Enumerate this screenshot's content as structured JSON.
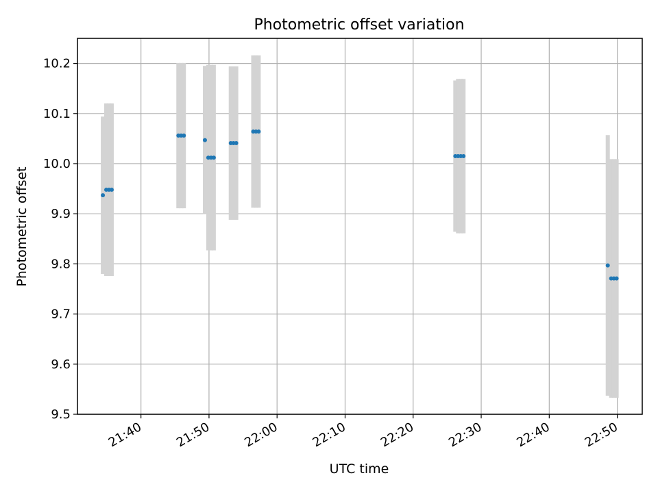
{
  "chart_data": {
    "type": "scatter",
    "title": "Photometric offset variation",
    "xlabel": "UTC time",
    "ylabel": "Photometric offset",
    "ylim": [
      9.5,
      10.25
    ],
    "xlim": [
      "21:30:40",
      "22:53:40"
    ],
    "grid": true,
    "x_ticks": [
      "21:40",
      "21:50",
      "22:00",
      "22:10",
      "22:20",
      "22:30",
      "22:40",
      "22:50"
    ],
    "y_ticks": [
      9.5,
      9.6,
      9.7,
      9.8,
      9.9,
      10.0,
      10.1,
      10.2
    ],
    "y_tick_labels": [
      "9.5",
      "9.6",
      "9.7",
      "9.8",
      "9.9",
      "10.0",
      "10.1",
      "10.2"
    ],
    "point_color": "#1f77b4",
    "errorbar_color": "#d3d3d3",
    "points": [
      {
        "x": "21:34:24",
        "y": 9.937,
        "err": 0.157
      },
      {
        "x": "21:34:54",
        "y": 9.948,
        "err": 0.172
      },
      {
        "x": "21:35:18",
        "y": 9.948,
        "err": 0.172
      },
      {
        "x": "21:35:42",
        "y": 9.948,
        "err": 0.172
      },
      {
        "x": "21:45:30",
        "y": 10.056,
        "err": 0.145
      },
      {
        "x": "21:45:54",
        "y": 10.056,
        "err": 0.145
      },
      {
        "x": "21:46:18",
        "y": 10.056,
        "err": 0.145
      },
      {
        "x": "21:49:24",
        "y": 10.047,
        "err": 0.148
      },
      {
        "x": "21:49:54",
        "y": 10.012,
        "err": 0.185
      },
      {
        "x": "21:50:18",
        "y": 10.012,
        "err": 0.185
      },
      {
        "x": "21:50:42",
        "y": 10.012,
        "err": 0.185
      },
      {
        "x": "21:53:12",
        "y": 10.041,
        "err": 0.153
      },
      {
        "x": "21:53:36",
        "y": 10.041,
        "err": 0.153
      },
      {
        "x": "21:54:00",
        "y": 10.041,
        "err": 0.153
      },
      {
        "x": "21:56:30",
        "y": 10.064,
        "err": 0.152
      },
      {
        "x": "21:56:54",
        "y": 10.064,
        "err": 0.152
      },
      {
        "x": "21:57:18",
        "y": 10.064,
        "err": 0.152
      },
      {
        "x": "22:26:12",
        "y": 10.015,
        "err": 0.151
      },
      {
        "x": "22:26:36",
        "y": 10.015,
        "err": 0.154
      },
      {
        "x": "22:27:00",
        "y": 10.015,
        "err": 0.154
      },
      {
        "x": "22:27:24",
        "y": 10.015,
        "err": 0.154
      },
      {
        "x": "22:48:36",
        "y": 9.797,
        "err": 0.26
      },
      {
        "x": "22:49:06",
        "y": 9.771,
        "err": 0.238
      },
      {
        "x": "22:49:30",
        "y": 9.771,
        "err": 0.238
      },
      {
        "x": "22:49:54",
        "y": 9.771,
        "err": 0.238
      }
    ]
  }
}
